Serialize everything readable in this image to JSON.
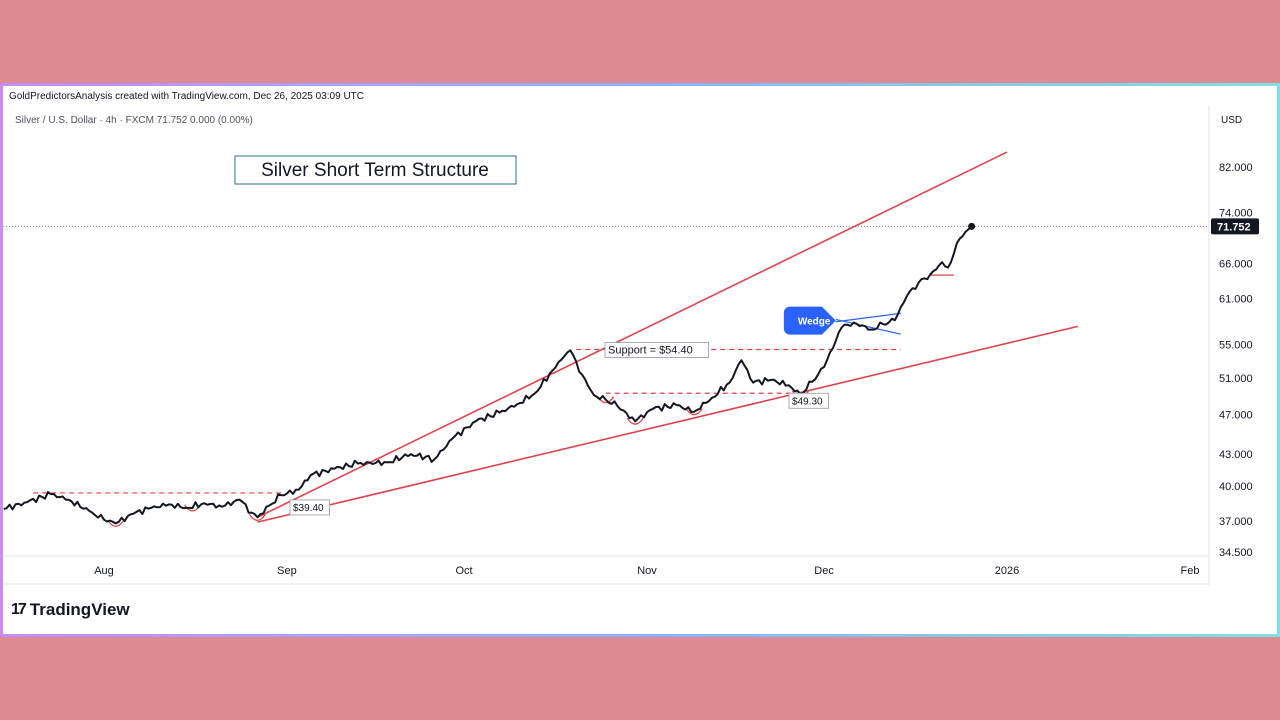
{
  "header": {
    "credit": "GoldPredictorsAnalysis created with TradingView.com, Dec 26, 2025 03:09 UTC",
    "symbol_line": "Silver / U.S. Dollar · 4h · FXCM 71.752 0.000 (0.00%)",
    "currency": "USD"
  },
  "footer": {
    "brand_mark": "17",
    "brand_name": "TradingView"
  },
  "colors": {
    "price": "#131722",
    "channel": "#e0434b",
    "wedge": "#2962ff",
    "last_price_bg": "#131722",
    "background": "#dd8b93"
  },
  "chart_data": {
    "type": "line",
    "title": "Silver Short Term Structure",
    "xlabel": "",
    "ylabel": "",
    "yscale": "log",
    "ylim": [
      34.5,
      86
    ],
    "grid": false,
    "last_price": 71.752,
    "last_price_label": "71.752",
    "yticks": [
      {
        "value": 82,
        "label": "82.000"
      },
      {
        "value": 74,
        "label": "74.000"
      },
      {
        "value": 66,
        "label": "66.000"
      },
      {
        "value": 61,
        "label": "61.000"
      },
      {
        "value": 55,
        "label": "55.000"
      },
      {
        "value": 51,
        "label": "51.000"
      },
      {
        "value": 47,
        "label": "47.000"
      },
      {
        "value": 43,
        "label": "43.000"
      },
      {
        "value": 40,
        "label": "40.000"
      },
      {
        "value": 37,
        "label": "37.000"
      },
      {
        "value": 34.5,
        "label": "34.500"
      }
    ],
    "xticks": [
      {
        "date": "2025-08-01",
        "label": "Aug"
      },
      {
        "date": "2025-09-01",
        "label": "Sep"
      },
      {
        "date": "2025-10-01",
        "label": "Oct"
      },
      {
        "date": "2025-11-01",
        "label": "Nov"
      },
      {
        "date": "2025-12-01",
        "label": "Dec"
      },
      {
        "date": "2026-01-01",
        "label": "2026"
      },
      {
        "date": "2026-02-01",
        "label": "Feb"
      }
    ],
    "series": [
      {
        "values": [
          [
            "2025-07-15",
            38.0
          ],
          [
            "2025-07-19",
            38.6
          ],
          [
            "2025-07-23",
            39.3
          ],
          [
            "2025-07-26",
            38.8
          ],
          [
            "2025-07-30",
            37.7
          ],
          [
            "2025-08-01",
            37.1
          ],
          [
            "2025-08-03",
            36.8
          ],
          [
            "2025-08-06",
            37.6
          ],
          [
            "2025-08-09",
            38.1
          ],
          [
            "2025-08-12",
            38.4
          ],
          [
            "2025-08-15",
            38.1
          ],
          [
            "2025-08-18",
            38.5
          ],
          [
            "2025-08-21",
            38.2
          ],
          [
            "2025-08-24",
            38.8
          ],
          [
            "2025-08-26",
            37.7
          ],
          [
            "2025-08-27",
            37.3
          ],
          [
            "2025-08-29",
            38.3
          ],
          [
            "2025-08-31",
            39.2
          ],
          [
            "2025-09-03",
            39.7
          ],
          [
            "2025-09-05",
            41.0
          ],
          [
            "2025-09-09",
            41.6
          ],
          [
            "2025-09-13",
            42.1
          ],
          [
            "2025-09-18",
            42.2
          ],
          [
            "2025-09-22",
            43.0
          ],
          [
            "2025-09-26",
            42.5
          ],
          [
            "2025-09-29",
            44.5
          ],
          [
            "2025-10-03",
            46.3
          ],
          [
            "2025-10-07",
            47.2
          ],
          [
            "2025-10-10",
            48.1
          ],
          [
            "2025-10-13",
            49.3
          ],
          [
            "2025-10-16",
            51.9
          ],
          [
            "2025-10-18",
            53.6
          ],
          [
            "2025-10-19",
            54.3
          ],
          [
            "2025-10-21",
            51.4
          ],
          [
            "2025-10-23",
            49.1
          ],
          [
            "2025-10-25",
            48.6
          ],
          [
            "2025-10-27",
            47.9
          ],
          [
            "2025-10-30",
            46.3
          ],
          [
            "2025-11-02",
            47.6
          ],
          [
            "2025-11-06",
            48.0
          ],
          [
            "2025-11-09",
            47.3
          ],
          [
            "2025-11-12",
            48.8
          ],
          [
            "2025-11-15",
            50.5
          ],
          [
            "2025-11-17",
            53.1
          ],
          [
            "2025-11-19",
            50.5
          ],
          [
            "2025-11-22",
            50.8
          ],
          [
            "2025-11-25",
            50.2
          ],
          [
            "2025-11-27",
            49.2
          ],
          [
            "2025-11-29",
            50.6
          ],
          [
            "2025-12-01",
            52.3
          ],
          [
            "2025-12-03",
            55.5
          ],
          [
            "2025-12-04",
            57.2
          ],
          [
            "2025-12-06",
            57.8
          ],
          [
            "2025-12-09",
            56.9
          ],
          [
            "2025-12-11",
            57.6
          ],
          [
            "2025-12-13",
            58.1
          ],
          [
            "2025-12-15",
            61.3
          ],
          [
            "2025-12-17",
            63.2
          ],
          [
            "2025-12-19",
            64.4
          ],
          [
            "2025-12-21",
            66.2
          ],
          [
            "2025-12-22",
            65.4
          ],
          [
            "2025-12-24",
            69.8
          ],
          [
            "2025-12-26",
            71.752
          ]
        ]
      }
    ],
    "annotations": [
      {
        "type": "trendline",
        "name": "upper-channel",
        "start": [
          "2025-08-27",
          37.3
        ],
        "end": [
          "2026-01-01",
          84.8
        ]
      },
      {
        "type": "trendline",
        "name": "lower-channel",
        "start": [
          "2025-08-27",
          36.9
        ],
        "end": [
          "2026-01-13",
          57.3
        ]
      },
      {
        "type": "hline",
        "name": "level-39",
        "value": 39.4,
        "from": "2025-07-20",
        "to": "2025-08-31",
        "style": "dashed",
        "label": "$39.40"
      },
      {
        "type": "hline",
        "name": "support",
        "value": 54.4,
        "from": "2025-10-20",
        "to": "2025-12-14",
        "style": "dashed",
        "label": "Support = $54.40"
      },
      {
        "type": "hline",
        "name": "level-49",
        "value": 49.3,
        "from": "2025-10-25",
        "to": "2025-11-28",
        "style": "dashed",
        "label": "$49.30"
      },
      {
        "type": "hline",
        "name": "level-64",
        "value": 64.3,
        "from": "2025-12-19",
        "to": "2025-12-23",
        "style": "solid"
      },
      {
        "type": "wedge",
        "label": "Wedge",
        "upper": [
          [
            "2025-12-03",
            57.9
          ],
          [
            "2025-12-14",
            59.0
          ]
        ],
        "lower": [
          [
            "2025-12-03",
            58.2
          ],
          [
            "2025-12-14",
            56.3
          ]
        ]
      },
      {
        "type": "arc",
        "name": "low-marker",
        "points": [
          [
            "2025-08-03",
            36.8
          ],
          [
            "2025-08-27",
            37.3
          ],
          [
            "2025-10-25",
            48.6
          ],
          [
            "2025-10-30",
            46.3
          ],
          [
            "2025-11-09",
            47.3
          ],
          [
            "2025-11-27",
            49.2
          ],
          [
            "2025-08-16",
            38.1
          ]
        ]
      }
    ]
  }
}
